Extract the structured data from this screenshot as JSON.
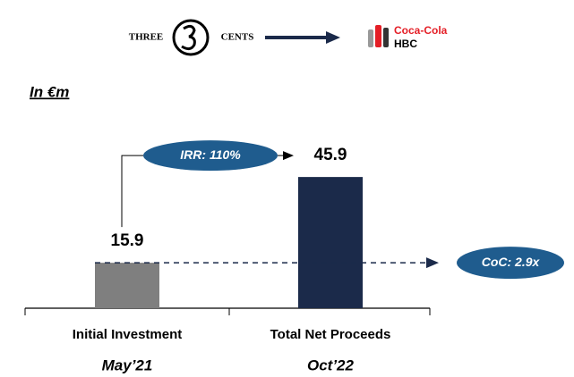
{
  "logos": {
    "from": [
      "THREE",
      "CENTS"
    ],
    "to": [
      "Coca-Cola",
      "HBC"
    ]
  },
  "chart_data": {
    "type": "bar",
    "unit_label": "In €m",
    "categories": [
      "Initial Investment",
      "Total Net Proceeds"
    ],
    "category_dates": [
      "May’21",
      "Oct’22"
    ],
    "values": [
      15.9,
      45.9
    ],
    "colors": [
      "#7f7f7f",
      "#1b2a4a"
    ],
    "ylim": [
      0,
      50
    ],
    "annotations": {
      "irr": "IRR: 110%",
      "coc": "CoC: 2.9x"
    },
    "annotation_color": "#1f5c8e"
  }
}
